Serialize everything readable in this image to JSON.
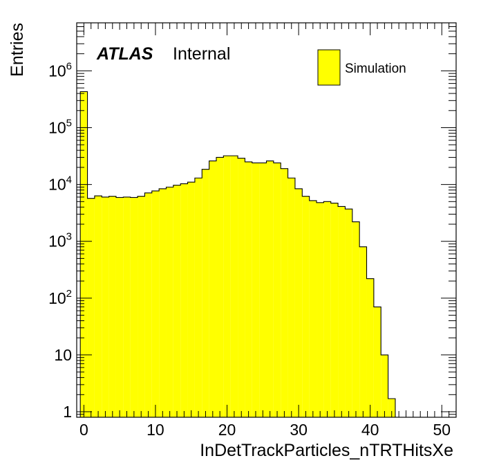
{
  "chart_data": {
    "type": "bar",
    "xlabel": "InDetTrackParticles_nTRTHitsXe",
    "ylabel": "Entries",
    "xlim": [
      -1,
      52
    ],
    "ylim": [
      0.8,
      7000000
    ],
    "yscale": "log",
    "x_ticks": [
      0,
      10,
      20,
      30,
      40,
      50
    ],
    "y_ticks": [
      {
        "value": 1,
        "base": "1",
        "exp": ""
      },
      {
        "value": 10,
        "base": "10",
        "exp": ""
      },
      {
        "value": 100,
        "base": "10",
        "exp": "2"
      },
      {
        "value": 1000,
        "base": "10",
        "exp": "3"
      },
      {
        "value": 10000,
        "base": "10",
        "exp": "4"
      },
      {
        "value": 100000,
        "base": "10",
        "exp": "5"
      },
      {
        "value": 1000000,
        "base": "10",
        "exp": "6"
      }
    ],
    "bin_width": 1,
    "bin_start": -0.5,
    "values": [
      430000,
      5700,
      6300,
      6000,
      6200,
      5900,
      6000,
      5900,
      6200,
      7100,
      7700,
      8400,
      9000,
      9700,
      10300,
      11000,
      13000,
      18500,
      26000,
      30000,
      32000,
      32000,
      29000,
      25000,
      24000,
      24000,
      26000,
      24000,
      19000,
      13000,
      8400,
      6200,
      5200,
      4800,
      5000,
      4700,
      4100,
      3700,
      2200,
      800,
      220,
      70,
      10,
      1.7,
      0.5
    ],
    "series": [
      {
        "name": "Simulation",
        "color": "#ffff00",
        "edge_color": "#000000"
      }
    ],
    "legend_position": "top-right",
    "experiment_label": "ATLAS",
    "status_label": "Internal",
    "grid": false
  }
}
